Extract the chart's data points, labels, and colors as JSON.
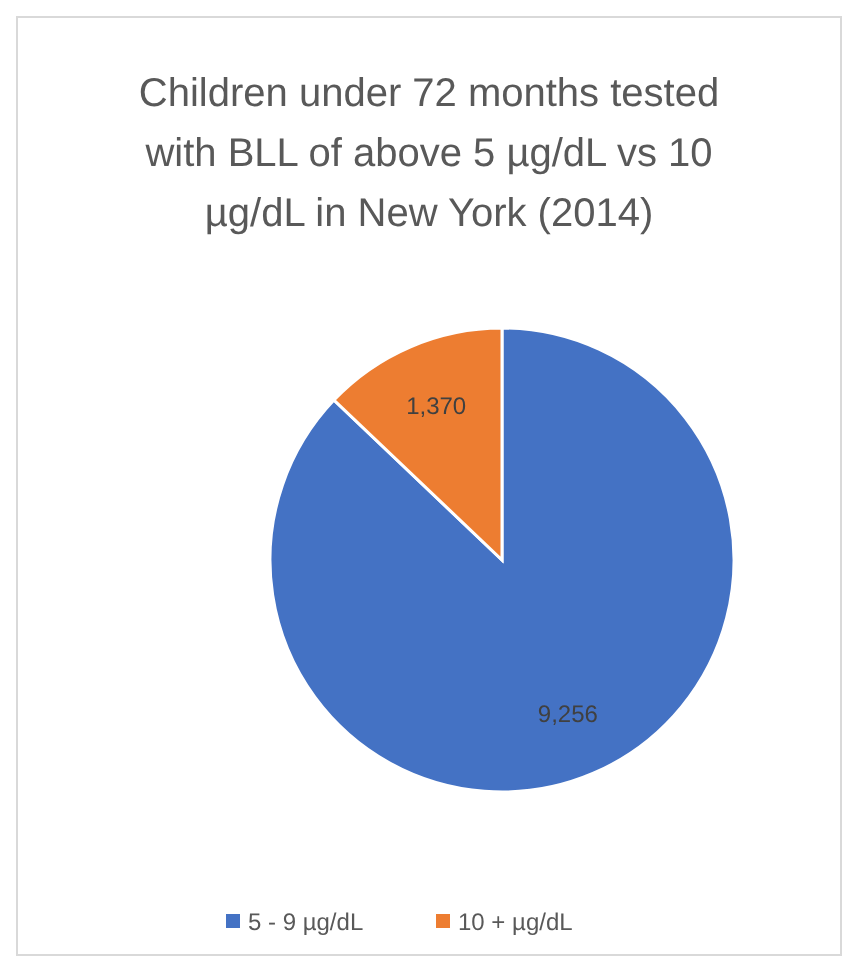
{
  "chart_data": {
    "type": "pie",
    "title": "Children under 72 months tested with BLL of above 5 µg/dL vs 10 µg/dL in New York (2014)",
    "categories": [
      "5 - 9 µg/dL",
      "10 + µg/dL"
    ],
    "values": [
      9256,
      1370
    ],
    "colors": [
      "#4472c4",
      "#ed7d31"
    ],
    "value_labels": [
      "9,256",
      "1,370"
    ],
    "legend": "bottom"
  }
}
